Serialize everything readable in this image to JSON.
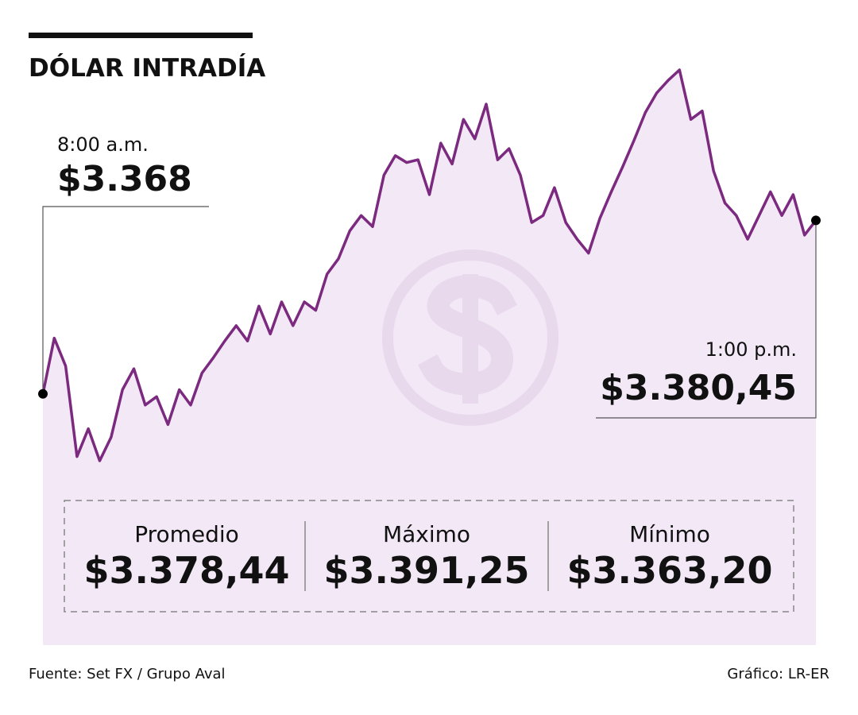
{
  "chart_data": {
    "type": "line",
    "title": "DÓLAR INTRADÍA",
    "series": [
      {
        "color": "#7b2a7f",
        "fill": "#f3e9f6",
        "values": [
          3368,
          3372.0,
          3370.0,
          3363.5,
          3365.5,
          3363.2,
          3364.9,
          3368.3,
          3369.8,
          3367.2,
          3367.8,
          3365.8,
          3368.3,
          3367.2,
          3369.5,
          3370.6,
          3371.8,
          3372.9,
          3371.8,
          3374.3,
          3372.3,
          3374.6,
          3372.9,
          3374.6,
          3374.0,
          3376.6,
          3377.7,
          3379.7,
          3380.8,
          3380.0,
          3383.7,
          3385.1,
          3384.6,
          3384.8,
          3382.3,
          3386.0,
          3384.5,
          3387.7,
          3386.3,
          3388.8,
          3384.8,
          3385.6,
          3383.7,
          3380.3,
          3380.8,
          3382.8,
          3380.3,
          3379.1,
          3378.1,
          3380.6,
          3382.5,
          3384.3,
          3386.2,
          3388.2,
          3389.6,
          3390.5,
          3391.25,
          3387.7,
          3388.3,
          3384.0,
          3381.7,
          3380.8,
          3379.1,
          3380.8,
          3382.5,
          3380.8,
          3382.3,
          3379.4,
          3380.45
        ]
      }
    ],
    "annotations": [
      {
        "time": "8:00 a.m.",
        "value": 3368,
        "label": "$3.368"
      },
      {
        "time": "1:00 p.m.",
        "value": 3380.45,
        "label": "$3.380,45"
      }
    ],
    "stats": [
      {
        "name": "Promedio",
        "label": "$3.378,44"
      },
      {
        "name": "Máximo",
        "label": "$3.391,25"
      },
      {
        "name": "Mínimo",
        "label": "$3.363,20"
      }
    ],
    "source": "Fuente: Set FX / Grupo Aval",
    "credit": "Gráfico: LR-ER"
  }
}
